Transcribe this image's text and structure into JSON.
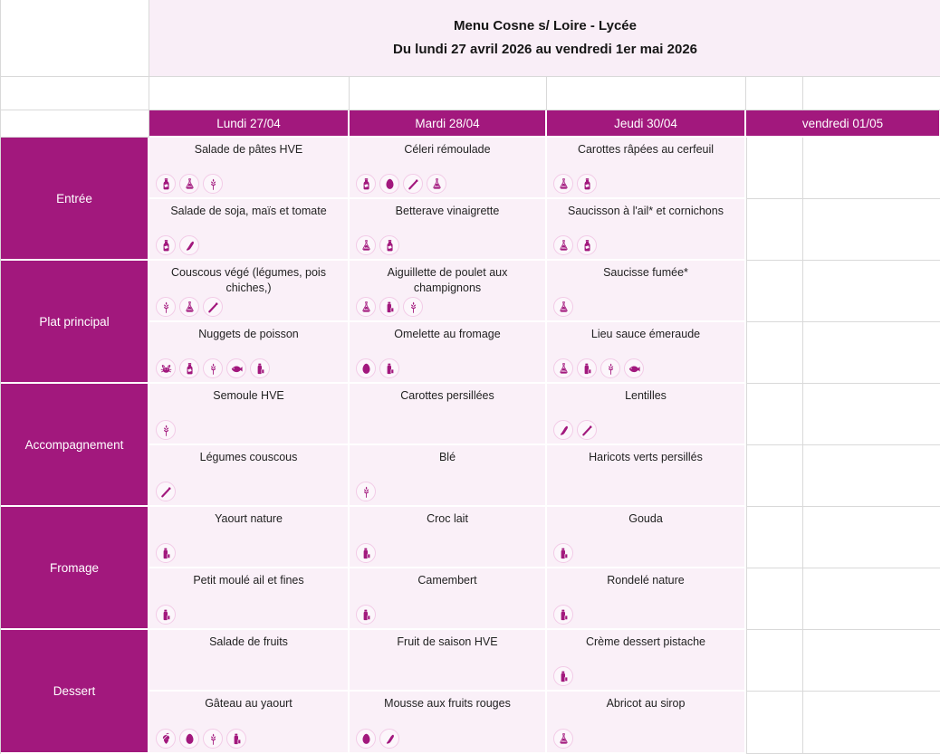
{
  "title": {
    "line1": "Menu Cosne s/ Loire - Lycée",
    "line2": "Du lundi 27 avril 2026 au vendredi 1er mai 2026"
  },
  "days": [
    {
      "label": "Lundi 27/04"
    },
    {
      "label": "Mardi 28/04"
    },
    {
      "label": "Jeudi 30/04"
    },
    {
      "label": "vendredi 01/05"
    }
  ],
  "colors": {
    "accent_magenta": "#A2187D",
    "cell_pink": "#FAF0F8",
    "title_band_pink": "#F9EEF7",
    "grid_line": "#D9D9D9",
    "icon_circle_border": "#F2CBE7"
  },
  "categories": [
    {
      "label": "Entrée",
      "rows": [
        {
          "cells": [
            {
              "text": "Salade de pâtes HVE",
              "icons": [
                "mustard-bottle",
                "sulfites-flask",
                "gluten-wheat"
              ]
            },
            {
              "text": "Céleri rémoulade",
              "icons": [
                "mustard-bottle",
                "egg",
                "celery",
                "sulfites-flask"
              ]
            },
            {
              "text": "Carottes râpées au cerfeuil",
              "icons": [
                "sulfites-flask",
                "mustard-bottle"
              ]
            }
          ]
        },
        {
          "cells": [
            {
              "text": "Salade de soja, maïs et tomate",
              "icons": [
                "mustard-bottle",
                "soy-pod"
              ]
            },
            {
              "text": "Betterave vinaigrette",
              "icons": [
                "sulfites-flask",
                "mustard-bottle"
              ]
            },
            {
              "text": "Saucisson à l'ail* et cornichons",
              "icons": [
                "sulfites-flask",
                "mustard-bottle"
              ]
            }
          ]
        }
      ]
    },
    {
      "label": "Plat principal",
      "rows": [
        {
          "cells": [
            {
              "text": "Couscous végé (légumes, pois chiches,)",
              "icons": [
                "gluten-wheat",
                "sulfites-flask",
                "celery"
              ]
            },
            {
              "text": "Aiguillette de poulet aux champignons",
              "icons": [
                "sulfites-flask",
                "milk",
                "gluten-wheat"
              ]
            },
            {
              "text": "Saucisse fumée*",
              "icons": [
                "sulfites-flask"
              ]
            }
          ]
        },
        {
          "cells": [
            {
              "text": "Nuggets de poisson",
              "icons": [
                "crab",
                "mustard-bottle",
                "gluten-wheat",
                "fish",
                "milk"
              ]
            },
            {
              "text": "Omelette au fromage",
              "icons": [
                "egg",
                "milk"
              ]
            },
            {
              "text": "Lieu sauce émeraude",
              "icons": [
                "sulfites-flask",
                "milk",
                "gluten-wheat",
                "fish"
              ]
            }
          ]
        }
      ]
    },
    {
      "label": "Accompagnement",
      "rows": [
        {
          "cells": [
            {
              "text": "Semoule HVE",
              "icons": [
                "gluten-wheat"
              ]
            },
            {
              "text": "Carottes persillées",
              "icons": []
            },
            {
              "text": "Lentilles",
              "icons": [
                "soy-pod",
                "celery"
              ]
            }
          ]
        },
        {
          "cells": [
            {
              "text": "Légumes couscous",
              "icons": [
                "celery"
              ]
            },
            {
              "text": "Blé",
              "icons": [
                "gluten-wheat"
              ]
            },
            {
              "text": "Haricots verts persillés",
              "icons": []
            }
          ]
        }
      ]
    },
    {
      "label": "Fromage",
      "rows": [
        {
          "cells": [
            {
              "text": "Yaourt nature",
              "icons": [
                "milk"
              ]
            },
            {
              "text": "Croc lait",
              "icons": [
                "milk"
              ]
            },
            {
              "text": "Gouda",
              "icons": [
                "milk"
              ]
            }
          ]
        },
        {
          "cells": [
            {
              "text": "Petit moulé ail et fines",
              "icons": [
                "milk"
              ]
            },
            {
              "text": "Camembert",
              "icons": [
                "milk"
              ]
            },
            {
              "text": "Rondelé nature",
              "icons": [
                "milk"
              ]
            }
          ]
        }
      ]
    },
    {
      "label": "Dessert",
      "rows": [
        {
          "cells": [
            {
              "text": "Salade de fruits",
              "icons": []
            },
            {
              "text": "Fruit de saison HVE",
              "icons": []
            },
            {
              "text": "Crème dessert pistache",
              "icons": [
                "milk"
              ]
            }
          ]
        },
        {
          "cells": [
            {
              "text": "Gâteau au yaourt",
              "icons": [
                "nuts-acorn",
                "egg",
                "gluten-wheat",
                "milk"
              ]
            },
            {
              "text": "Mousse aux fruits rouges",
              "icons": [
                "egg",
                "soy-pod"
              ]
            },
            {
              "text": "Abricot au sirop",
              "icons": [
                "sulfites-flask"
              ]
            }
          ]
        }
      ]
    }
  ]
}
